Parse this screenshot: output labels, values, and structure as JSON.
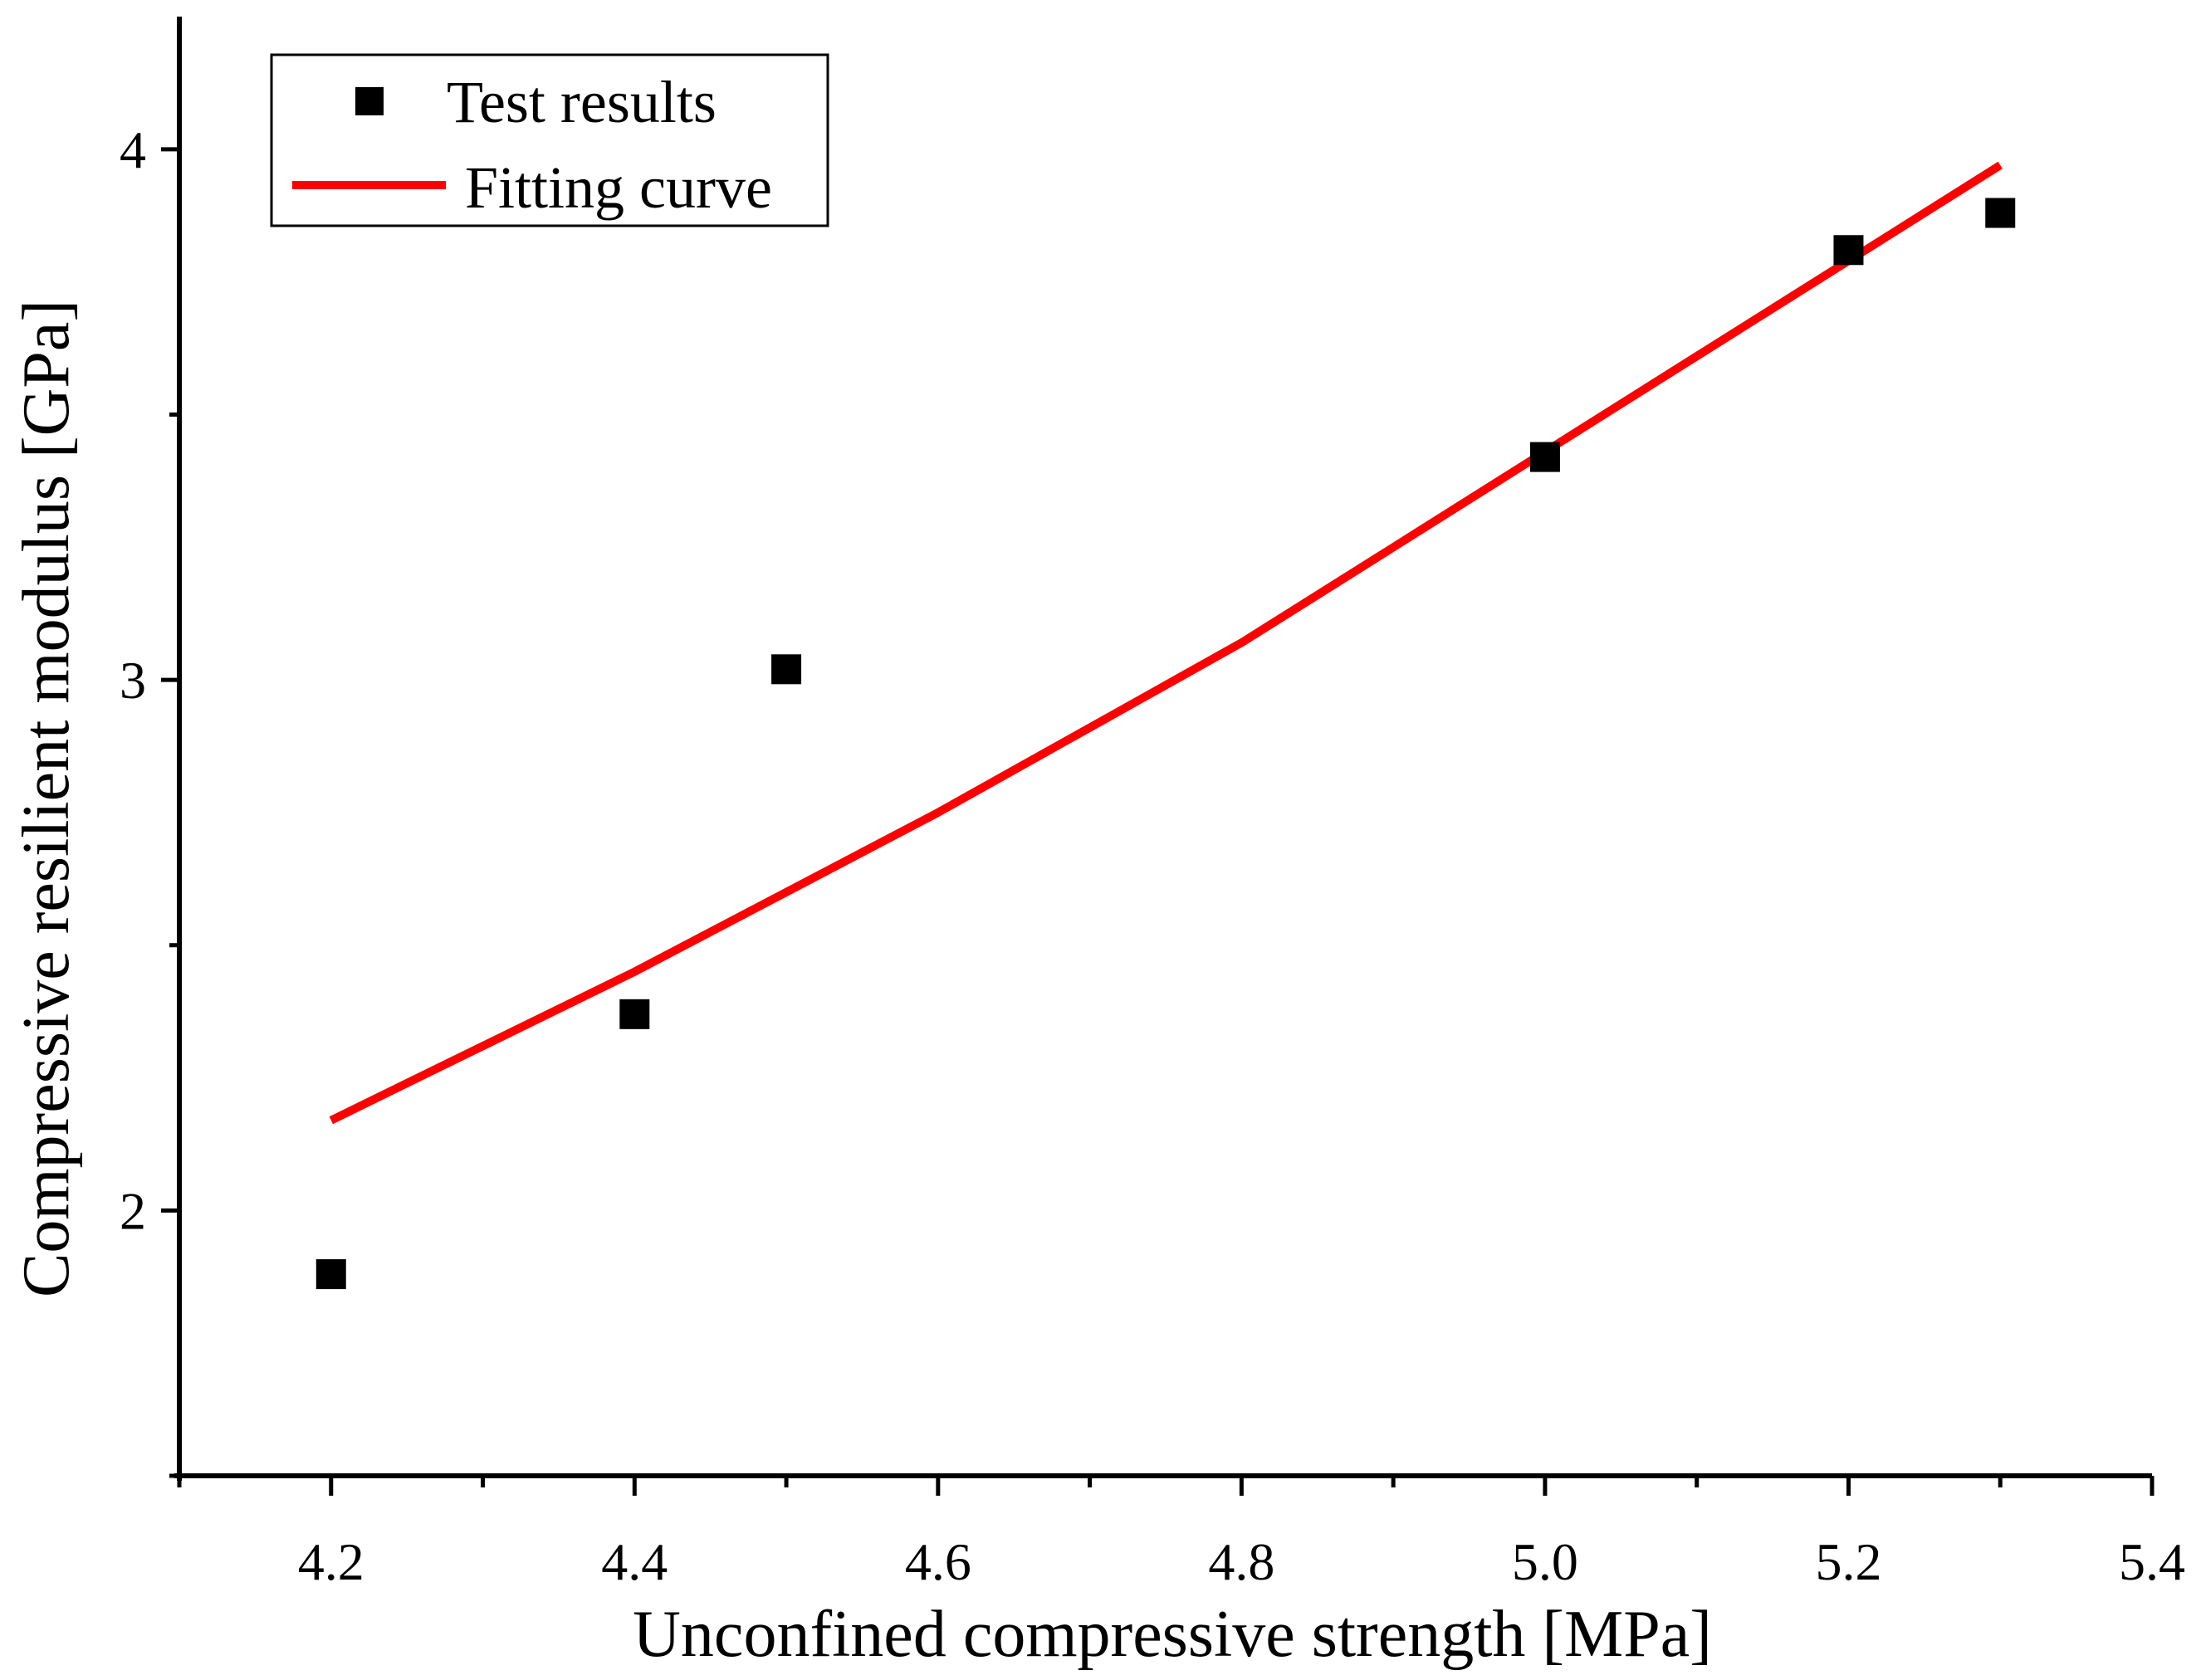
{
  "chart_data": {
    "type": "scatter",
    "title": "",
    "xlabel": "Unconfined compressive strength [MPa]",
    "ylabel": "Compressive resilient modulus [GPa]",
    "xlim": [
      4.1,
      5.4
    ],
    "ylim": [
      1.5,
      4.25
    ],
    "x_major_ticks": [
      4.2,
      4.4,
      4.6,
      4.8,
      5.0,
      5.2,
      5.4
    ],
    "x_minor_ticks": [
      4.1,
      4.3,
      4.5,
      4.7,
      4.9,
      5.1,
      5.3
    ],
    "x_tick_labels": [
      "4.2",
      "4.4",
      "4.6",
      "4.8",
      "5.0",
      "5.2",
      "5.4"
    ],
    "y_major_ticks": [
      2,
      3,
      4
    ],
    "y_minor_ticks": [
      1.5,
      2.5,
      3.5
    ],
    "y_tick_labels": [
      "2",
      "3",
      "4"
    ],
    "grid": false,
    "legend_position": "top-left",
    "series": [
      {
        "name": "Test results",
        "kind": "scatter",
        "marker": "square",
        "color": "#000000",
        "x": [
          4.2,
          4.4,
          4.5,
          5.0,
          5.2,
          5.3
        ],
        "y": [
          1.88,
          2.37,
          3.02,
          3.42,
          3.81,
          3.88
        ]
      },
      {
        "name": "Fitting curve",
        "kind": "line",
        "color": "#ff0000",
        "x": [
          4.2,
          4.3,
          4.4,
          4.5,
          4.6,
          4.7,
          4.8,
          4.9,
          5.0,
          5.1,
          5.2,
          5.3
        ],
        "y": [
          2.17,
          2.31,
          2.45,
          2.6,
          2.75,
          2.91,
          3.07,
          3.25,
          3.43,
          3.61,
          3.79,
          3.97
        ]
      }
    ]
  }
}
